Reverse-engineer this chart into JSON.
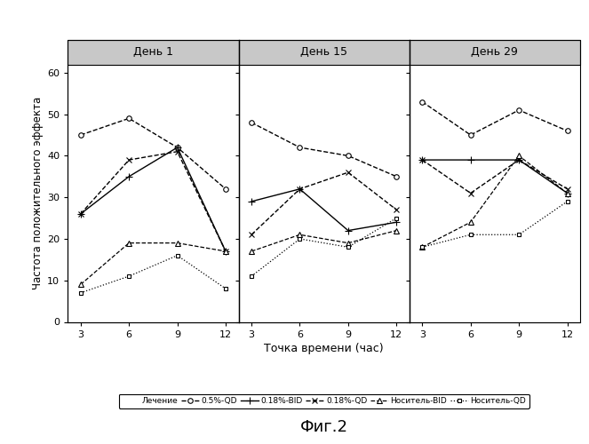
{
  "title_fig": "Фиг.2",
  "ylabel": "Частота положительного эффекта",
  "xlabel": "Точка времени (час)",
  "ylim": [
    0,
    62
  ],
  "yticks": [
    0,
    10,
    20,
    30,
    40,
    50,
    60
  ],
  "xticks": [
    3,
    6,
    9,
    12
  ],
  "panel_titles": [
    "День 1",
    "День 15",
    "День 29"
  ],
  "series": [
    {
      "label": "0.5%-QD",
      "color": "#000000",
      "linestyle": "--",
      "marker": "o",
      "markersize": 4,
      "linewidth": 1.0,
      "day1": [
        45,
        49,
        42,
        32
      ],
      "day15": [
        48,
        42,
        40,
        35
      ],
      "day29": [
        53,
        45,
        51,
        46
      ]
    },
    {
      "label": "0.18%-BID",
      "color": "#000000",
      "linestyle": "-",
      "marker": "+",
      "markersize": 6,
      "linewidth": 1.0,
      "day1": [
        26,
        35,
        42,
        17
      ],
      "day15": [
        29,
        32,
        22,
        24
      ],
      "day29": [
        39,
        39,
        39,
        31
      ]
    },
    {
      "label": "0.18%-QD",
      "color": "#000000",
      "linestyle": "--",
      "marker": "x",
      "markersize": 5,
      "linewidth": 1.0,
      "day1": [
        26,
        39,
        41,
        17
      ],
      "day15": [
        21,
        32,
        36,
        27
      ],
      "day29": [
        39,
        31,
        39,
        32
      ]
    },
    {
      "label": "Носитель-BID",
      "color": "#000000",
      "linestyle": "--",
      "marker": "^",
      "markersize": 4,
      "linewidth": 0.9,
      "day1": [
        9,
        19,
        19,
        17
      ],
      "day15": [
        17,
        21,
        19,
        22
      ],
      "day29": [
        18,
        24,
        40,
        31
      ]
    },
    {
      "label": "Носитель-QD",
      "color": "#000000",
      "linestyle": ":",
      "marker": "s",
      "markersize": 3,
      "linewidth": 0.9,
      "day1": [
        7,
        11,
        16,
        8
      ],
      "day15": [
        11,
        20,
        18,
        25
      ],
      "day29": [
        18,
        21,
        21,
        29
      ]
    }
  ],
  "background_color": "#ffffff",
  "header_bg": "#c8c8c8",
  "legend_labels": [
    "Лечение",
    "0.5%-QD",
    "0.18%-BID",
    "0.18%-QD",
    "Носитель-BID",
    "Носитель-QD"
  ]
}
